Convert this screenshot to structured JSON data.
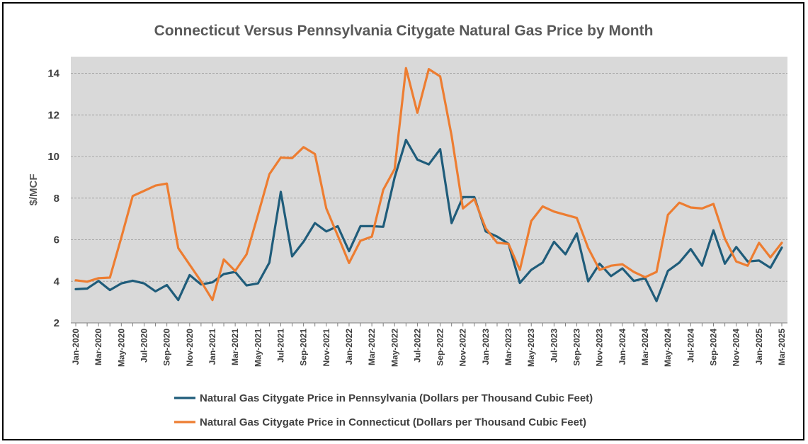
{
  "chart_data": {
    "type": "line",
    "title": "Connecticut Versus Pennsylvania Citygate Natural Gas Price by Month",
    "ylabel": "$/MCF",
    "xlabel": "",
    "ylim": [
      2,
      14.8
    ],
    "yticks": [
      2,
      4,
      6,
      8,
      10,
      12,
      14
    ],
    "grid": true,
    "legend_position": "bottom",
    "x": [
      "Jan-2020",
      "Feb-2020",
      "Mar-2020",
      "Apr-2020",
      "May-2020",
      "Jun-2020",
      "Jul-2020",
      "Aug-2020",
      "Sep-2020",
      "Oct-2020",
      "Nov-2020",
      "Dec-2020",
      "Jan-2021",
      "Feb-2021",
      "Mar-2021",
      "Apr-2021",
      "May-2021",
      "Jun-2021",
      "Jul-2021",
      "Aug-2021",
      "Sep-2021",
      "Oct-2021",
      "Nov-2021",
      "Dec-2021",
      "Jan-2022",
      "Feb-2022",
      "Mar-2022",
      "Apr-2022",
      "May-2022",
      "Jun-2022",
      "Jul-2022",
      "Aug-2022",
      "Sep-2022",
      "Oct-2022",
      "Nov-2022",
      "Dec-2022",
      "Jan-2023",
      "Feb-2023",
      "Mar-2023",
      "Apr-2023",
      "May-2023",
      "Jun-2023",
      "Jul-2023",
      "Aug-2023",
      "Sep-2023",
      "Oct-2023",
      "Nov-2023",
      "Dec-2023",
      "Jan-2024",
      "Feb-2024",
      "Mar-2024",
      "Apr-2024",
      "May-2024",
      "Jun-2024",
      "Jul-2024",
      "Aug-2024",
      "Sep-2024",
      "Oct-2024",
      "Nov-2024",
      "Dec-2024",
      "Jan-2025",
      "Feb-2025",
      "Mar-2025"
    ],
    "xtick_labels": [
      "Jan-2020",
      "Mar-2020",
      "May-2020",
      "Jul-2020",
      "Sep-2020",
      "Nov-2020",
      "Jan-2021",
      "Mar-2021",
      "May-2021",
      "Jul-2021",
      "Sep-2021",
      "Nov-2021",
      "Jan-2022",
      "Mar-2022",
      "May-2022",
      "Jul-2022",
      "Sep-2022",
      "Nov-2022",
      "Jan-2023",
      "Mar-2023",
      "May-2023",
      "Jul-2023",
      "Sep-2023",
      "Nov-2023",
      "Jan-2024",
      "Mar-2024",
      "May-2024",
      "Jul-2024",
      "Sep-2024",
      "Nov-2024",
      "Jan-2025",
      "Mar-2025"
    ],
    "series": [
      {
        "name": "Natural Gas Citygate Price in Pennsylvania (Dollars per Thousand Cubic Feet)",
        "color": "#1f5c7a",
        "values": [
          3.62,
          3.65,
          4.02,
          3.58,
          3.9,
          4.03,
          3.9,
          3.52,
          3.82,
          3.1,
          4.3,
          3.85,
          3.95,
          4.35,
          4.45,
          3.8,
          3.9,
          4.9,
          8.3,
          5.2,
          5.9,
          6.8,
          6.4,
          6.65,
          5.45,
          6.65,
          6.65,
          6.62,
          9.0,
          10.8,
          9.85,
          9.62,
          10.35,
          6.8,
          8.05,
          8.05,
          6.4,
          6.15,
          5.8,
          3.92,
          4.55,
          4.9,
          5.9,
          5.3,
          6.3,
          4.0,
          4.85,
          4.25,
          4.62,
          4.02,
          4.15,
          3.05,
          4.5,
          4.9,
          5.55,
          4.75,
          6.45,
          4.85,
          5.65,
          4.95,
          5.0,
          4.65,
          5.62
        ]
      },
      {
        "name": "Natural Gas Citygate Price in Connecticut (Dollars per Thousand Cubic Feet)",
        "color": "#ed7d31",
        "values": [
          4.05,
          3.98,
          4.15,
          4.18,
          6.1,
          8.1,
          8.35,
          8.6,
          8.7,
          5.6,
          4.8,
          4.0,
          3.1,
          5.05,
          4.5,
          5.3,
          7.2,
          9.15,
          9.95,
          9.92,
          10.45,
          10.12,
          7.5,
          6.2,
          4.88,
          5.95,
          6.15,
          8.4,
          9.4,
          14.25,
          12.1,
          14.2,
          13.85,
          11.0,
          7.5,
          7.95,
          6.55,
          5.85,
          5.8,
          4.55,
          6.9,
          7.6,
          7.35,
          7.2,
          7.05,
          5.6,
          4.55,
          4.75,
          4.82,
          4.45,
          4.2,
          4.45,
          7.2,
          7.78,
          7.55,
          7.5,
          7.72,
          6.05,
          4.95,
          4.75,
          5.85,
          5.15,
          5.85
        ]
      }
    ]
  }
}
